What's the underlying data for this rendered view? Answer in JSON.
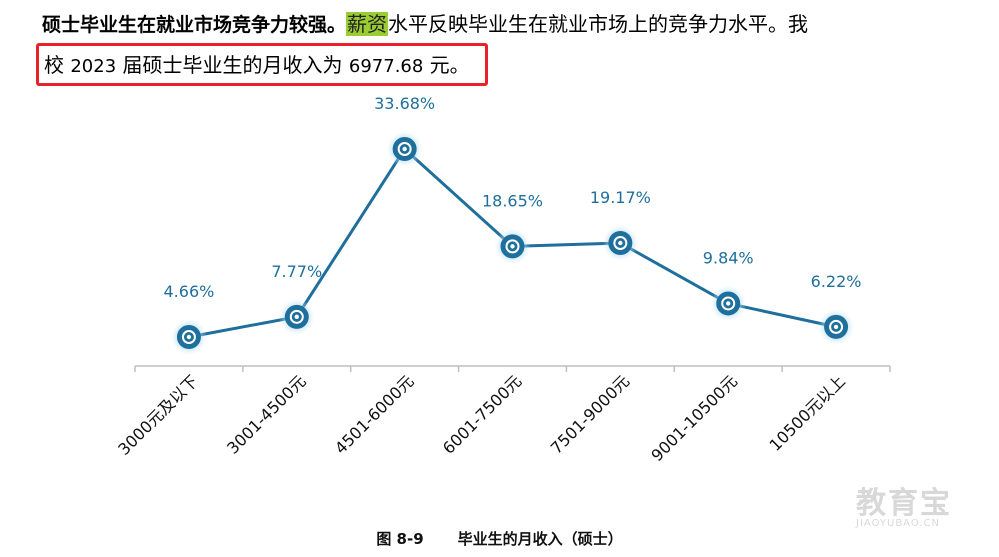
{
  "text": {
    "bold_sentence": "硕士毕业生在就业市场竞争力较强。",
    "highlight_word": "薪资",
    "rest_line1": "水平反映毕业生在就业市场上的竞争力水平。我",
    "line2_a": "校 ",
    "line2_year": "2023",
    "line2_b": " 届硕士毕业生的月收入为 ",
    "line2_value": "6977.68",
    "line2_c": " 元。"
  },
  "caption": {
    "figure_no": "图 8-9",
    "title": "毕业生的月收入（硕士）"
  },
  "watermark": {
    "main": "教育宝",
    "sub": "JIAOYUBAO.CN"
  },
  "colors": {
    "series": "#1f6f9c",
    "label": "#1f6f9c",
    "highlight": "#9acd32",
    "box": "#e8212a"
  },
  "chart_data": {
    "type": "line",
    "categories": [
      "3000元及以下",
      "3001-4500元",
      "4501-6000元",
      "6001-7500元",
      "7501-9000元",
      "9001-10500元",
      "10500元以上"
    ],
    "values": [
      4.66,
      7.77,
      33.68,
      18.65,
      19.17,
      9.84,
      6.22
    ],
    "labels": [
      "4.66%",
      "7.77%",
      "33.68%",
      "18.65%",
      "19.17%",
      "9.84%",
      "6.22%"
    ],
    "ylim": [
      0,
      40
    ],
    "grid": false,
    "legend": "none"
  }
}
